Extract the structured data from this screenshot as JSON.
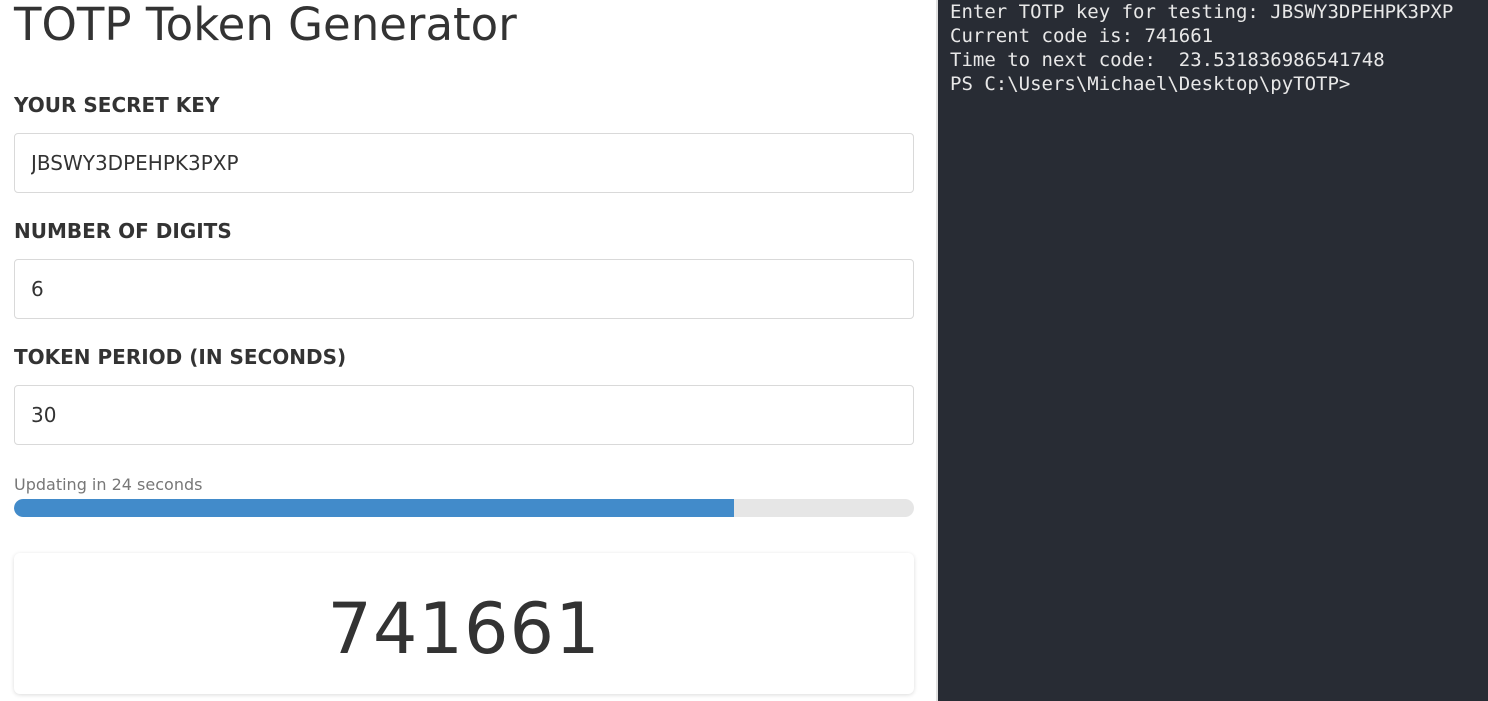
{
  "app": {
    "title": "TOTP Token Generator"
  },
  "form": {
    "secret_key": {
      "label": "YOUR SECRET KEY",
      "value": "JBSWY3DPEHPK3PXP"
    },
    "digits": {
      "label": "NUMBER OF DIGITS",
      "value": "6"
    },
    "period": {
      "label": "TOKEN PERIOD (IN SECONDS)",
      "value": "30"
    }
  },
  "progress": {
    "caption": "Updating in 24 seconds",
    "fraction": 0.8,
    "color": "#428bca",
    "track_color": "#e6e6e6"
  },
  "token": {
    "code": "741661"
  },
  "terminal": {
    "background": "#282c34",
    "lines": [
      "Enter TOTP key for testing: JBSWY3DPEHPK3PXP",
      "Current code is: 741661",
      "Time to next code:  23.531836986541748",
      "PS C:\\Users\\Michael\\Desktop\\pyTOTP>"
    ]
  }
}
